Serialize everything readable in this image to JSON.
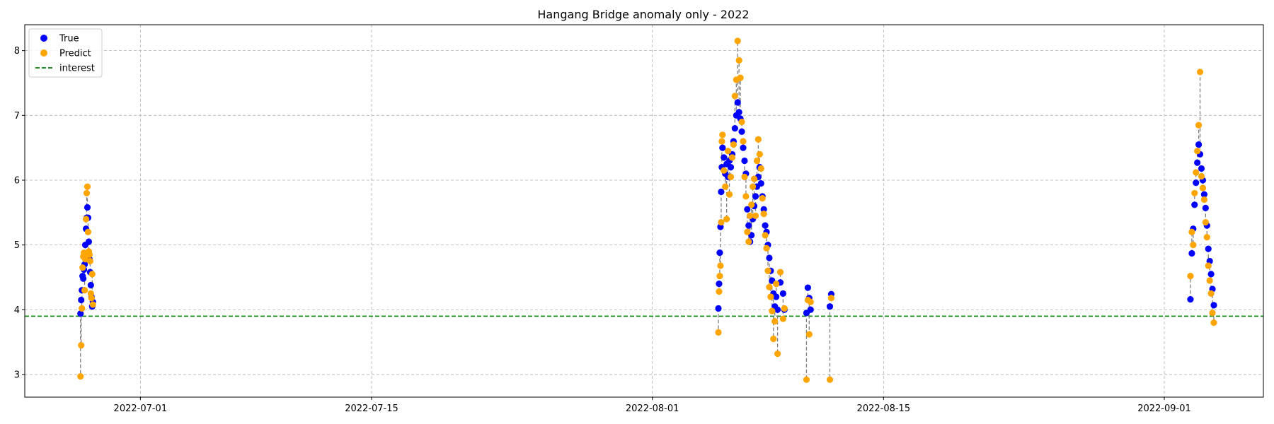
{
  "chart_data": {
    "type": "scatter",
    "title": "Hangang Bridge anomaly only - 2022",
    "xlabel": "",
    "ylabel": "",
    "x_type": "date",
    "xlim": [
      "2022-06-24T00:00",
      "2022-09-07T00:00"
    ],
    "ylim": [
      2.65,
      8.4
    ],
    "x_ticks": [
      "2022-07-01",
      "2022-07-15",
      "2022-08-01",
      "2022-08-15",
      "2022-09-01"
    ],
    "y_ticks": [
      3,
      4,
      5,
      6,
      7,
      8
    ],
    "grid": true,
    "legend_position": "top-left",
    "interest_level": 3.9,
    "series": [
      {
        "name": "True",
        "color": "#0000ff",
        "points": [
          [
            "2022-06-27T09:00",
            3.94
          ],
          [
            "2022-06-27T10:00",
            4.15
          ],
          [
            "2022-06-27T11:00",
            4.3
          ],
          [
            "2022-06-27T12:00",
            4.52
          ],
          [
            "2022-06-27T13:00",
            4.48
          ],
          [
            "2022-06-27T14:00",
            4.62
          ],
          [
            "2022-06-27T15:00",
            4.7
          ],
          [
            "2022-06-27T16:00",
            5.0
          ],
          [
            "2022-06-27T17:00",
            5.25
          ],
          [
            "2022-06-27T18:00",
            5.42
          ],
          [
            "2022-06-27T19:00",
            5.58
          ],
          [
            "2022-06-27T20:00",
            5.42
          ],
          [
            "2022-06-27T21:00",
            5.05
          ],
          [
            "2022-06-27T22:00",
            4.78
          ],
          [
            "2022-06-27T23:00",
            4.58
          ],
          [
            "2022-06-28T00:00",
            4.38
          ],
          [
            "2022-06-28T01:00",
            4.2
          ],
          [
            "2022-06-28T02:00",
            4.05
          ],
          [
            "2022-06-28T03:00",
            4.12
          ],
          [
            "2022-08-05T00:00",
            4.02
          ],
          [
            "2022-08-05T01:00",
            4.4
          ],
          [
            "2022-08-05T02:00",
            4.88
          ],
          [
            "2022-08-05T03:00",
            5.28
          ],
          [
            "2022-08-05T04:00",
            5.82
          ],
          [
            "2022-08-05T05:00",
            6.2
          ],
          [
            "2022-08-05T06:00",
            6.5
          ],
          [
            "2022-08-05T08:00",
            6.35
          ],
          [
            "2022-08-05T10:00",
            6.1
          ],
          [
            "2022-08-05T12:00",
            6.25
          ],
          [
            "2022-08-05T14:00",
            6.05
          ],
          [
            "2022-08-05T16:00",
            6.3
          ],
          [
            "2022-08-05T18:00",
            6.2
          ],
          [
            "2022-08-05T20:00",
            6.4
          ],
          [
            "2022-08-05T22:00",
            6.6
          ],
          [
            "2022-08-06T00:00",
            6.8
          ],
          [
            "2022-08-06T02:00",
            7.0
          ],
          [
            "2022-08-06T04:00",
            7.2
          ],
          [
            "2022-08-06T06:00",
            7.05
          ],
          [
            "2022-08-06T08:00",
            6.95
          ],
          [
            "2022-08-06T10:00",
            6.75
          ],
          [
            "2022-08-06T12:00",
            6.5
          ],
          [
            "2022-08-06T14:00",
            6.3
          ],
          [
            "2022-08-06T16:00",
            6.1
          ],
          [
            "2022-08-06T18:00",
            5.55
          ],
          [
            "2022-08-06T20:00",
            5.3
          ],
          [
            "2022-08-06T22:00",
            5.05
          ],
          [
            "2022-08-07T00:00",
            5.15
          ],
          [
            "2022-08-07T02:00",
            5.4
          ],
          [
            "2022-08-07T04:00",
            5.6
          ],
          [
            "2022-08-07T06:00",
            5.75
          ],
          [
            "2022-08-07T08:00",
            5.9
          ],
          [
            "2022-08-07T10:00",
            6.05
          ],
          [
            "2022-08-07T12:00",
            6.2
          ],
          [
            "2022-08-07T14:00",
            5.95
          ],
          [
            "2022-08-07T16:00",
            5.75
          ],
          [
            "2022-08-07T18:00",
            5.55
          ],
          [
            "2022-08-07T20:00",
            5.3
          ],
          [
            "2022-08-07T22:00",
            5.2
          ],
          [
            "2022-08-08T00:00",
            5.0
          ],
          [
            "2022-08-08T02:00",
            4.8
          ],
          [
            "2022-08-08T04:00",
            4.6
          ],
          [
            "2022-08-08T06:00",
            4.45
          ],
          [
            "2022-08-08T08:00",
            4.25
          ],
          [
            "2022-08-08T10:00",
            4.05
          ],
          [
            "2022-08-08T12:00",
            4.2
          ],
          [
            "2022-08-08T14:00",
            4.0
          ],
          [
            "2022-08-08T18:00",
            4.42
          ],
          [
            "2022-08-08T22:00",
            4.25
          ],
          [
            "2022-08-09T00:00",
            4.0
          ],
          [
            "2022-08-10T08:00",
            3.95
          ],
          [
            "2022-08-10T10:00",
            4.34
          ],
          [
            "2022-08-10T12:00",
            4.18
          ],
          [
            "2022-08-10T14:00",
            4.0
          ],
          [
            "2022-08-11T18:00",
            4.05
          ],
          [
            "2022-08-11T20:00",
            4.24
          ],
          [
            "2022-09-02T14:00",
            4.16
          ],
          [
            "2022-09-02T16:00",
            4.87
          ],
          [
            "2022-09-02T18:00",
            5.25
          ],
          [
            "2022-09-02T20:00",
            5.62
          ],
          [
            "2022-09-02T22:00",
            5.96
          ],
          [
            "2022-09-03T00:00",
            6.27
          ],
          [
            "2022-09-03T02:00",
            6.55
          ],
          [
            "2022-09-03T04:00",
            6.4
          ],
          [
            "2022-09-03T06:00",
            6.18
          ],
          [
            "2022-09-03T08:00",
            6.0
          ],
          [
            "2022-09-03T10:00",
            5.78
          ],
          [
            "2022-09-03T12:00",
            5.57
          ],
          [
            "2022-09-03T14:00",
            5.3
          ],
          [
            "2022-09-03T16:00",
            4.94
          ],
          [
            "2022-09-03T18:00",
            4.75
          ],
          [
            "2022-09-03T20:00",
            4.55
          ],
          [
            "2022-09-03T22:00",
            4.32
          ],
          [
            "2022-09-04T00:00",
            4.07
          ]
        ]
      },
      {
        "name": "Predict",
        "color": "#ffa500",
        "points": [
          [
            "2022-06-27T09:00",
            2.97
          ],
          [
            "2022-06-27T10:00",
            3.45
          ],
          [
            "2022-06-27T11:00",
            4.02
          ],
          [
            "2022-06-27T12:00",
            4.65
          ],
          [
            "2022-06-27T13:00",
            4.82
          ],
          [
            "2022-06-27T14:00",
            4.88
          ],
          [
            "2022-06-27T15:00",
            4.3
          ],
          [
            "2022-06-27T16:00",
            4.78
          ],
          [
            "2022-06-27T17:00",
            5.4
          ],
          [
            "2022-06-27T18:00",
            5.8
          ],
          [
            "2022-06-27T19:00",
            5.9
          ],
          [
            "2022-06-27T20:00",
            5.2
          ],
          [
            "2022-06-27T21:00",
            4.9
          ],
          [
            "2022-06-27T22:00",
            4.85
          ],
          [
            "2022-06-27T23:00",
            4.75
          ],
          [
            "2022-06-28T00:00",
            4.25
          ],
          [
            "2022-06-28T01:00",
            4.18
          ],
          [
            "2022-06-28T02:00",
            4.55
          ],
          [
            "2022-06-28T03:00",
            4.08
          ],
          [
            "2022-08-05T00:00",
            3.65
          ],
          [
            "2022-08-05T01:00",
            4.28
          ],
          [
            "2022-08-05T02:00",
            4.52
          ],
          [
            "2022-08-05T03:00",
            4.68
          ],
          [
            "2022-08-05T04:00",
            5.35
          ],
          [
            "2022-08-05T05:00",
            6.6
          ],
          [
            "2022-08-05T06:00",
            6.7
          ],
          [
            "2022-08-05T08:00",
            6.15
          ],
          [
            "2022-08-05T10:00",
            5.9
          ],
          [
            "2022-08-05T12:00",
            5.4
          ],
          [
            "2022-08-05T14:00",
            6.45
          ],
          [
            "2022-08-05T16:00",
            5.78
          ],
          [
            "2022-08-05T18:00",
            6.05
          ],
          [
            "2022-08-05T20:00",
            6.35
          ],
          [
            "2022-08-05T22:00",
            6.55
          ],
          [
            "2022-08-06T00:00",
            7.3
          ],
          [
            "2022-08-06T02:00",
            7.55
          ],
          [
            "2022-08-06T04:00",
            8.15
          ],
          [
            "2022-08-06T06:00",
            7.85
          ],
          [
            "2022-08-06T08:00",
            7.58
          ],
          [
            "2022-08-06T10:00",
            6.9
          ],
          [
            "2022-08-06T12:00",
            6.6
          ],
          [
            "2022-08-06T14:00",
            6.05
          ],
          [
            "2022-08-06T16:00",
            5.75
          ],
          [
            "2022-08-06T18:00",
            5.2
          ],
          [
            "2022-08-06T20:00",
            5.05
          ],
          [
            "2022-08-06T22:00",
            5.45
          ],
          [
            "2022-08-07T00:00",
            5.62
          ],
          [
            "2022-08-07T02:00",
            5.9
          ],
          [
            "2022-08-07T04:00",
            6.02
          ],
          [
            "2022-08-07T06:00",
            5.45
          ],
          [
            "2022-08-07T08:00",
            6.3
          ],
          [
            "2022-08-07T10:00",
            6.63
          ],
          [
            "2022-08-07T12:00",
            6.4
          ],
          [
            "2022-08-07T14:00",
            6.18
          ],
          [
            "2022-08-07T16:00",
            5.72
          ],
          [
            "2022-08-07T18:00",
            5.48
          ],
          [
            "2022-08-07T20:00",
            5.15
          ],
          [
            "2022-08-07T22:00",
            4.95
          ],
          [
            "2022-08-08T00:00",
            4.6
          ],
          [
            "2022-08-08T02:00",
            4.35
          ],
          [
            "2022-08-08T04:00",
            4.2
          ],
          [
            "2022-08-08T06:00",
            3.98
          ],
          [
            "2022-08-08T08:00",
            3.55
          ],
          [
            "2022-08-08T10:00",
            3.82
          ],
          [
            "2022-08-08T12:00",
            4.4
          ],
          [
            "2022-08-08T14:00",
            3.32
          ],
          [
            "2022-08-08T18:00",
            4.58
          ],
          [
            "2022-08-08T22:00",
            3.86
          ],
          [
            "2022-08-09T00:00",
            4.02
          ],
          [
            "2022-08-10T08:00",
            2.92
          ],
          [
            "2022-08-10T10:00",
            4.15
          ],
          [
            "2022-08-10T12:00",
            3.62
          ],
          [
            "2022-08-10T14:00",
            4.12
          ],
          [
            "2022-08-11T18:00",
            2.92
          ],
          [
            "2022-08-11T20:00",
            4.18
          ],
          [
            "2022-09-02T14:00",
            4.52
          ],
          [
            "2022-09-02T16:00",
            5.2
          ],
          [
            "2022-09-02T18:00",
            5.0
          ],
          [
            "2022-09-02T20:00",
            5.8
          ],
          [
            "2022-09-02T22:00",
            6.12
          ],
          [
            "2022-09-03T00:00",
            6.45
          ],
          [
            "2022-09-03T02:00",
            6.85
          ],
          [
            "2022-09-03T04:00",
            7.67
          ],
          [
            "2022-09-03T06:00",
            6.06
          ],
          [
            "2022-09-03T08:00",
            5.88
          ],
          [
            "2022-09-03T10:00",
            5.7
          ],
          [
            "2022-09-03T12:00",
            5.35
          ],
          [
            "2022-09-03T14:00",
            5.12
          ],
          [
            "2022-09-03T16:00",
            4.68
          ],
          [
            "2022-09-03T18:00",
            4.45
          ],
          [
            "2022-09-03T20:00",
            4.25
          ],
          [
            "2022-09-03T22:00",
            3.95
          ],
          [
            "2022-09-04T00:00",
            3.8
          ]
        ]
      }
    ],
    "legend": {
      "true_label": "True",
      "predict_label": "Predict",
      "interest_label": "interest"
    },
    "colors": {
      "true": "#0000ff",
      "predict": "#ffa500",
      "interest": "#008000",
      "connector": "#7f7f7f",
      "grid": "#b0b0b0"
    }
  }
}
